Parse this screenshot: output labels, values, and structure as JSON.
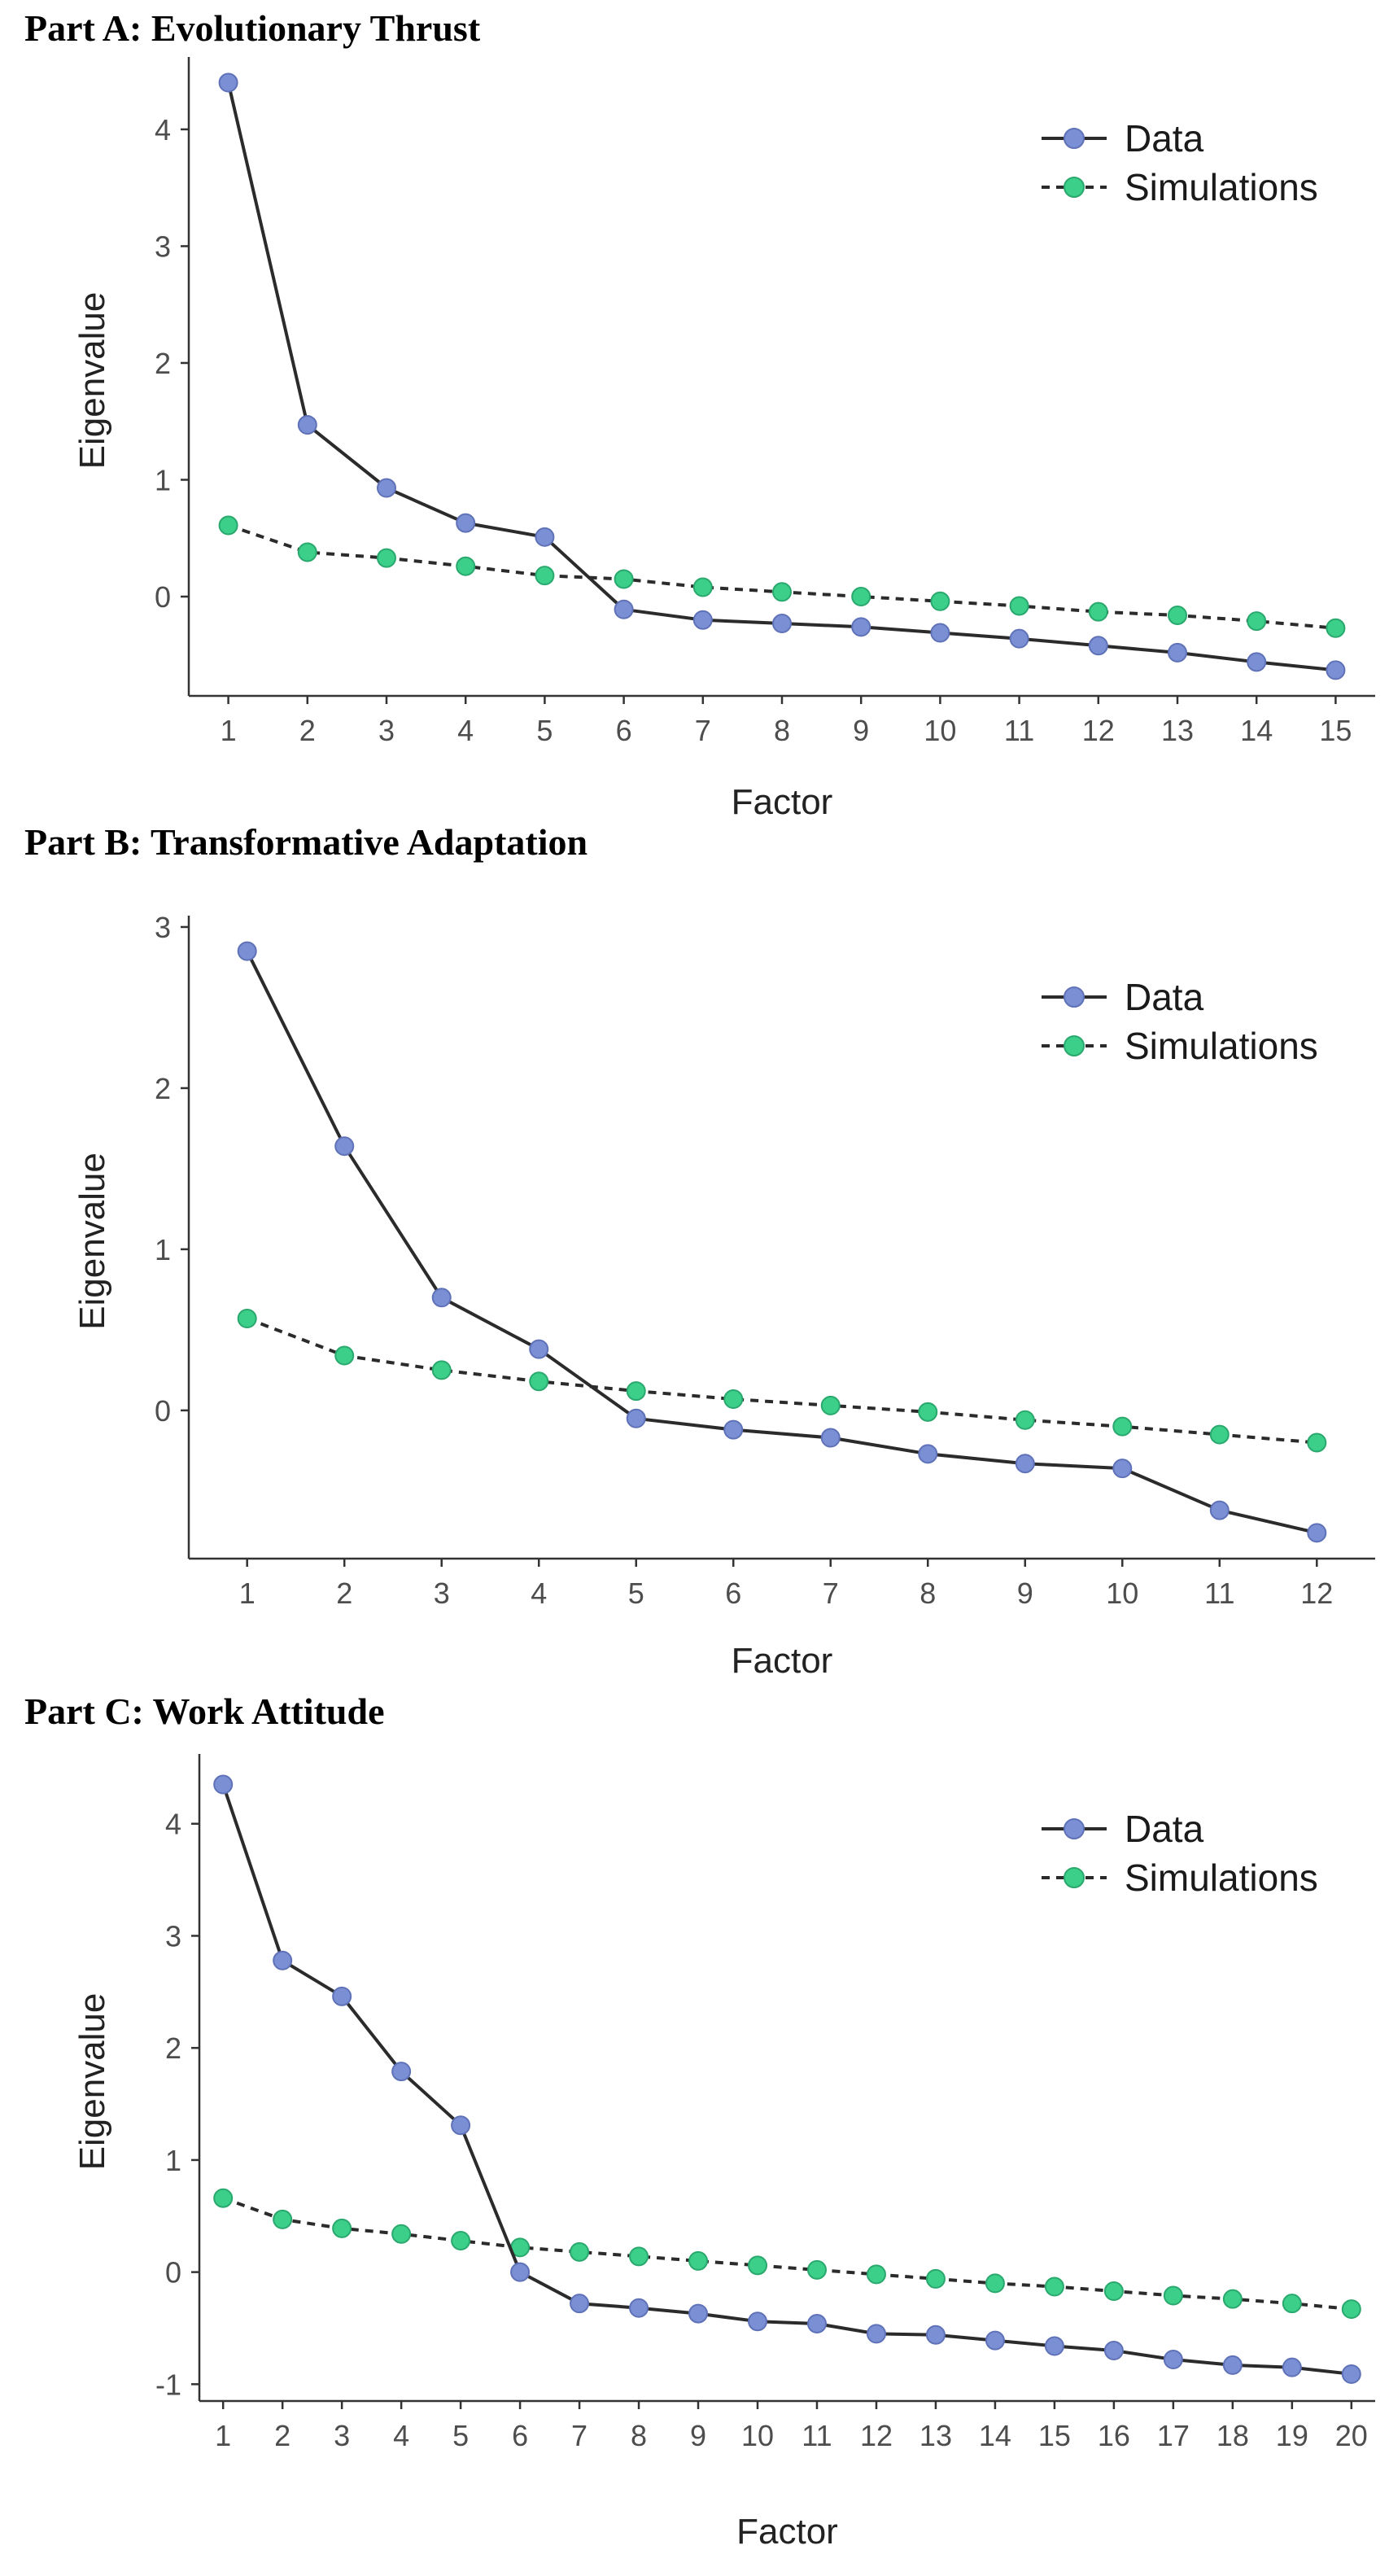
{
  "colors": {
    "data_point": "#7b8fd4",
    "data_point_stroke": "#5f72b8",
    "sim_point": "#3ccf8a",
    "sim_point_stroke": "#2aa86e",
    "line": "#2b2b2b",
    "axis": "#333333"
  },
  "chart_data": [
    {
      "type": "line",
      "title": "Part A: Evolutionary Thrust",
      "xlabel": "Factor",
      "ylabel": "Eigenvalue",
      "xlim": [
        0.5,
        15.5
      ],
      "ylim": [
        -0.85,
        4.55
      ],
      "yticks": [
        0,
        1,
        2,
        3,
        4
      ],
      "x": [
        1,
        2,
        3,
        4,
        5,
        6,
        7,
        8,
        9,
        10,
        11,
        12,
        13,
        14,
        15
      ],
      "series": [
        {
          "name": "Data",
          "style": "solid",
          "values": [
            4.4,
            1.47,
            0.93,
            0.63,
            0.51,
            -0.11,
            -0.2,
            -0.23,
            -0.26,
            -0.31,
            -0.36,
            -0.42,
            -0.48,
            -0.56,
            -0.63
          ]
        },
        {
          "name": "Simulations",
          "style": "dashed",
          "values": [
            0.61,
            0.38,
            0.33,
            0.26,
            0.18,
            0.15,
            0.08,
            0.04,
            0.0,
            -0.04,
            -0.08,
            -0.13,
            -0.16,
            -0.21,
            -0.27
          ]
        }
      ],
      "legend": "top-right"
    },
    {
      "type": "line",
      "title": "Part B: Transformative  Adaptation",
      "xlabel": "Factor",
      "ylabel": "Eigenvalue",
      "xlim": [
        0.4,
        12.6
      ],
      "ylim": [
        -0.92,
        3.02
      ],
      "yticks": [
        0,
        1,
        2,
        3
      ],
      "x": [
        1,
        2,
        3,
        4,
        5,
        6,
        7,
        8,
        9,
        10,
        11,
        12
      ],
      "series": [
        {
          "name": "Data",
          "style": "solid",
          "values": [
            2.85,
            1.64,
            0.7,
            0.38,
            -0.05,
            -0.12,
            -0.17,
            -0.27,
            -0.33,
            -0.36,
            -0.62,
            -0.76
          ]
        },
        {
          "name": "Simulations",
          "style": "dashed",
          "values": [
            0.57,
            0.34,
            0.25,
            0.18,
            0.12,
            0.07,
            0.03,
            -0.01,
            -0.06,
            -0.1,
            -0.15,
            -0.2
          ]
        }
      ],
      "legend": "top-right"
    },
    {
      "type": "line",
      "title": "Part C: Work Attitude",
      "xlabel": "Factor",
      "ylabel": "Eigenvalue",
      "xlim": [
        0.6,
        20.4
      ],
      "ylim": [
        -1.15,
        4.55
      ],
      "yticks": [
        -1,
        0,
        1,
        2,
        3,
        4
      ],
      "x": [
        1,
        2,
        3,
        4,
        5,
        6,
        7,
        8,
        9,
        10,
        11,
        12,
        13,
        14,
        15,
        16,
        17,
        18,
        19,
        20
      ],
      "series": [
        {
          "name": "Data",
          "style": "solid",
          "values": [
            4.35,
            2.78,
            2.46,
            1.79,
            1.31,
            0.0,
            -0.28,
            -0.32,
            -0.37,
            -0.44,
            -0.46,
            -0.55,
            -0.56,
            -0.61,
            -0.66,
            -0.7,
            -0.78,
            -0.83,
            -0.85,
            -0.91
          ]
        },
        {
          "name": "Simulations",
          "style": "dashed",
          "values": [
            0.66,
            0.47,
            0.39,
            0.34,
            0.28,
            0.22,
            0.18,
            0.14,
            0.1,
            0.06,
            0.02,
            -0.02,
            -0.06,
            -0.1,
            -0.13,
            -0.17,
            -0.21,
            -0.24,
            -0.28,
            -0.33
          ]
        }
      ],
      "legend": "top-right"
    }
  ]
}
